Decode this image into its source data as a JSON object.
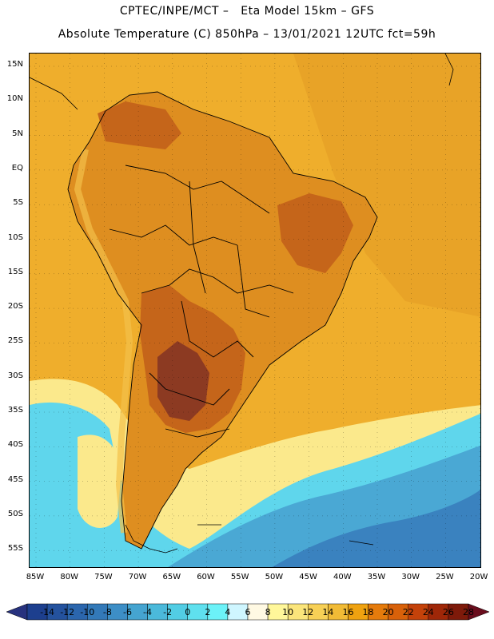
{
  "header": {
    "line1": "CPTEC/INPE/MCT –   Eta Model 15km – GFS",
    "line2": "Absolute Temperature (C) 850hPa – 13/01/2021 12UTC fct=59h"
  },
  "axes": {
    "lat_labels": [
      "15N",
      "10N",
      "5N",
      "EQ",
      "5S",
      "10S",
      "15S",
      "20S",
      "25S",
      "30S",
      "35S",
      "40S",
      "45S",
      "50S",
      "55S"
    ],
    "lon_labels": [
      "85W",
      "80W",
      "75W",
      "70W",
      "65W",
      "60W",
      "55W",
      "50W",
      "45W",
      "40W",
      "35W",
      "30W",
      "25W",
      "20W"
    ]
  },
  "colorbar": {
    "ticks": [
      "-14",
      "-12",
      "-10",
      "-8",
      "-6",
      "-4",
      "-2",
      "0",
      "2",
      "4",
      "6",
      "8",
      "10",
      "12",
      "14",
      "16",
      "18",
      "20",
      "22",
      "24",
      "26",
      "28"
    ],
    "colors": [
      "#1d3f8e",
      "#24529e",
      "#2b66ad",
      "#3379b8",
      "#3d8ec6",
      "#45a4d0",
      "#4bb9da",
      "#52cde4",
      "#5fe0ee",
      "#6cf2f8",
      "#cff6ff",
      "#fff9e3",
      "#fff79a",
      "#fbe57b",
      "#f7d056",
      "#f1bb36",
      "#efa210",
      "#e57b0c",
      "#d8610a",
      "#c4420a",
      "#9f2708",
      "#7e1a0a"
    ],
    "under_color": "#27327e",
    "over_color": "#6a0d1d"
  },
  "map": {
    "ocean_color": "#efae2c",
    "land_warm": "#de8e20",
    "land_hot": "#c5651a",
    "land_hottest": "#8c3a22",
    "southern_cool": "#fbe98c",
    "southern_cold": "#5fd6ec",
    "southern_colder": "#4aa8d4",
    "southern_coldest": "#3a82bf"
  }
}
